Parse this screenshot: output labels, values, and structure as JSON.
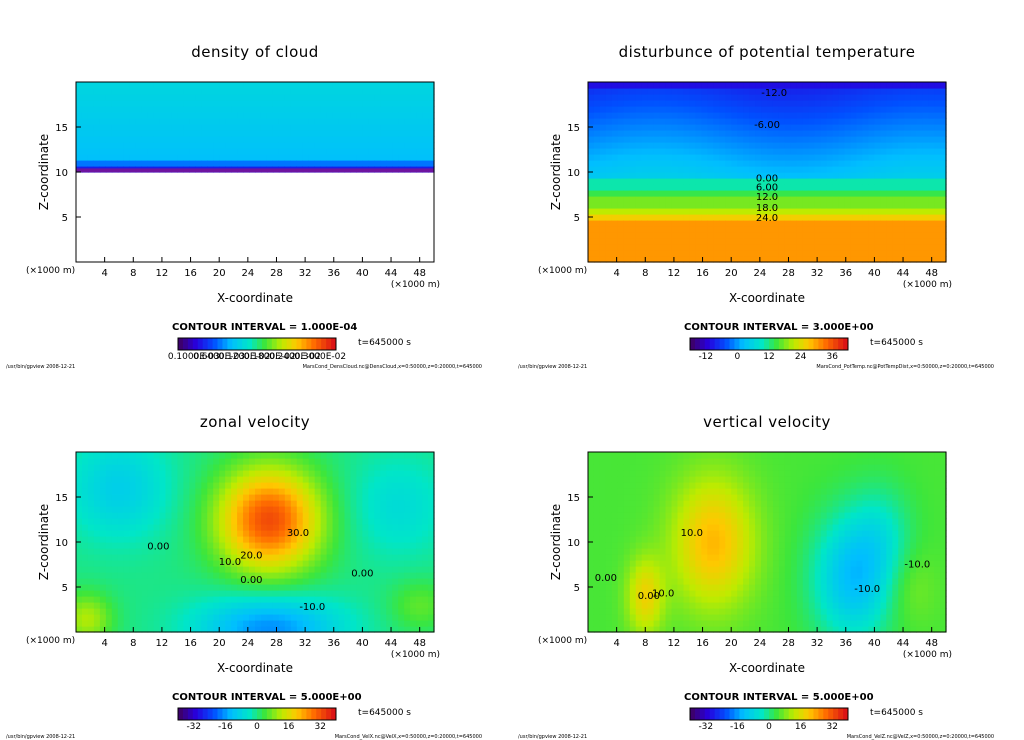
{
  "panels": [
    {
      "title": "density of cloud",
      "xlabel": "X-coordinate",
      "ylabel": "Z-coordinate",
      "x_unit_left": "(×1000 m)",
      "x_unit_right": "(×1000 m)",
      "contour_interval": "CONTOUR INTERVAL = 1.000E-04",
      "time": "t=645000 s",
      "colorbar_ticks": [
        "0.1000E-03",
        "0.6000E-03",
        "0.1200E-02",
        "0.1800E-02",
        "0.2400E-02",
        "0.3000E-02"
      ],
      "footer_left": "/usr/bin/gpview   2008-12-21",
      "footer_right": "MarsCond_DensCloud.nc@DensCloud,x=0:50000,z=0:20000,t=645000"
    },
    {
      "title": "disturbunce of potential temperature",
      "xlabel": "X-coordinate",
      "ylabel": "Z-coordinate",
      "x_unit_left": "(×1000 m)",
      "x_unit_right": "(×1000 m)",
      "contour_interval": "CONTOUR INTERVAL = 3.000E+00",
      "time": "t=645000 s",
      "colorbar_ticks": [
        "-12",
        "0",
        "12",
        "24",
        "36"
      ],
      "footer_left": "/usr/bin/gpview   2008-12-21",
      "footer_right": "MarsCond_PotTemp.nc@PotTempDist,x=0:50000,z=0:20000,t=645000"
    },
    {
      "title": "zonal velocity",
      "xlabel": "X-coordinate",
      "ylabel": "Z-coordinate",
      "x_unit_left": "(×1000 m)",
      "x_unit_right": "(×1000 m)",
      "contour_interval": "CONTOUR INTERVAL = 5.000E+00",
      "time": "t=645000 s",
      "colorbar_ticks": [
        "-32",
        "-16",
        "0",
        "16",
        "32"
      ],
      "footer_left": "/usr/bin/gpview   2008-12-21",
      "footer_right": "MarsCond_VelX.nc@VelX,x=0:50000,z=0:20000,t=645000"
    },
    {
      "title": "vertical velocity",
      "xlabel": "X-coordinate",
      "ylabel": "Z-coordinate",
      "x_unit_left": "(×1000 m)",
      "x_unit_right": "(×1000 m)",
      "contour_interval": "CONTOUR INTERVAL = 5.000E+00",
      "time": "t=645000 s",
      "colorbar_ticks": [
        "-32",
        "-16",
        "0",
        "16",
        "32"
      ],
      "footer_left": "/usr/bin/gpview   2008-12-21",
      "footer_right": "MarsCond_VelZ.nc@VelZ,x=0:50000,z=0:20000,t=645000"
    }
  ],
  "chart_data": [
    {
      "type": "heatmap",
      "title": "density of cloud",
      "xlabel": "X-coordinate",
      "ylabel": "Z-coordinate",
      "x_ticks": [
        4,
        8,
        12,
        16,
        20,
        24,
        28,
        32,
        36,
        40,
        44,
        48
      ],
      "y_ticks": [
        5,
        10,
        15
      ],
      "xlim": [
        0,
        50
      ],
      "ylim": [
        0,
        20
      ],
      "contour_labels": []
    },
    {
      "type": "heatmap",
      "title": "disturbunce of potential temperature",
      "xlabel": "X-coordinate",
      "ylabel": "Z-coordinate",
      "x_ticks": [
        4,
        8,
        12,
        16,
        20,
        24,
        28,
        32,
        36,
        40,
        44,
        48
      ],
      "y_ticks": [
        5,
        10,
        15
      ],
      "xlim": [
        0,
        50
      ],
      "ylim": [
        0,
        20
      ],
      "contour_labels": [
        {
          "text": "-12.0",
          "x": 26,
          "z": 18.8
        },
        {
          "text": "-6.00",
          "x": 25,
          "z": 15.2
        },
        {
          "text": "0.00",
          "x": 25,
          "z": 9.3
        },
        {
          "text": "6.00",
          "x": 25,
          "z": 8.3
        },
        {
          "text": "12.0",
          "x": 25,
          "z": 7.2
        },
        {
          "text": "18.0",
          "x": 25,
          "z": 6.0
        },
        {
          "text": "24.0",
          "x": 25,
          "z": 4.9
        }
      ]
    },
    {
      "type": "heatmap",
      "title": "zonal velocity",
      "xlabel": "X-coordinate",
      "ylabel": "Z-coordinate",
      "x_ticks": [
        4,
        8,
        12,
        16,
        20,
        24,
        28,
        32,
        36,
        40,
        44,
        48
      ],
      "y_ticks": [
        5,
        10,
        15
      ],
      "xlim": [
        0,
        50
      ],
      "ylim": [
        0,
        20
      ],
      "contour_labels": [
        {
          "text": "30.0",
          "x": 31,
          "z": 11.0
        },
        {
          "text": "20.0",
          "x": 24.5,
          "z": 8.5
        },
        {
          "text": "10.0",
          "x": 21.5,
          "z": 7.8
        },
        {
          "text": "0.00",
          "x": 24.5,
          "z": 5.8
        },
        {
          "text": "-10.0",
          "x": 33,
          "z": 2.8
        },
        {
          "text": "0.00",
          "x": 11.5,
          "z": 9.5
        },
        {
          "text": "0.00",
          "x": 40,
          "z": 6.5
        }
      ]
    },
    {
      "type": "heatmap",
      "title": "vertical velocity",
      "xlabel": "X-coordinate",
      "ylabel": "Z-coordinate",
      "x_ticks": [
        4,
        8,
        12,
        16,
        20,
        24,
        28,
        32,
        36,
        40,
        44,
        48
      ],
      "y_ticks": [
        5,
        10,
        15
      ],
      "xlim": [
        0,
        50
      ],
      "ylim": [
        0,
        20
      ],
      "contour_labels": [
        {
          "text": "10.0",
          "x": 14.5,
          "z": 11.0
        },
        {
          "text": "10.0",
          "x": 10.5,
          "z": 4.3
        },
        {
          "text": "0.00",
          "x": 8.5,
          "z": 4.0
        },
        {
          "text": "0.00",
          "x": 2.5,
          "z": 6.0
        },
        {
          "text": "-10.0",
          "x": 39,
          "z": 4.8
        },
        {
          "text": "-10.0",
          "x": 46,
          "z": 7.5
        }
      ]
    }
  ]
}
